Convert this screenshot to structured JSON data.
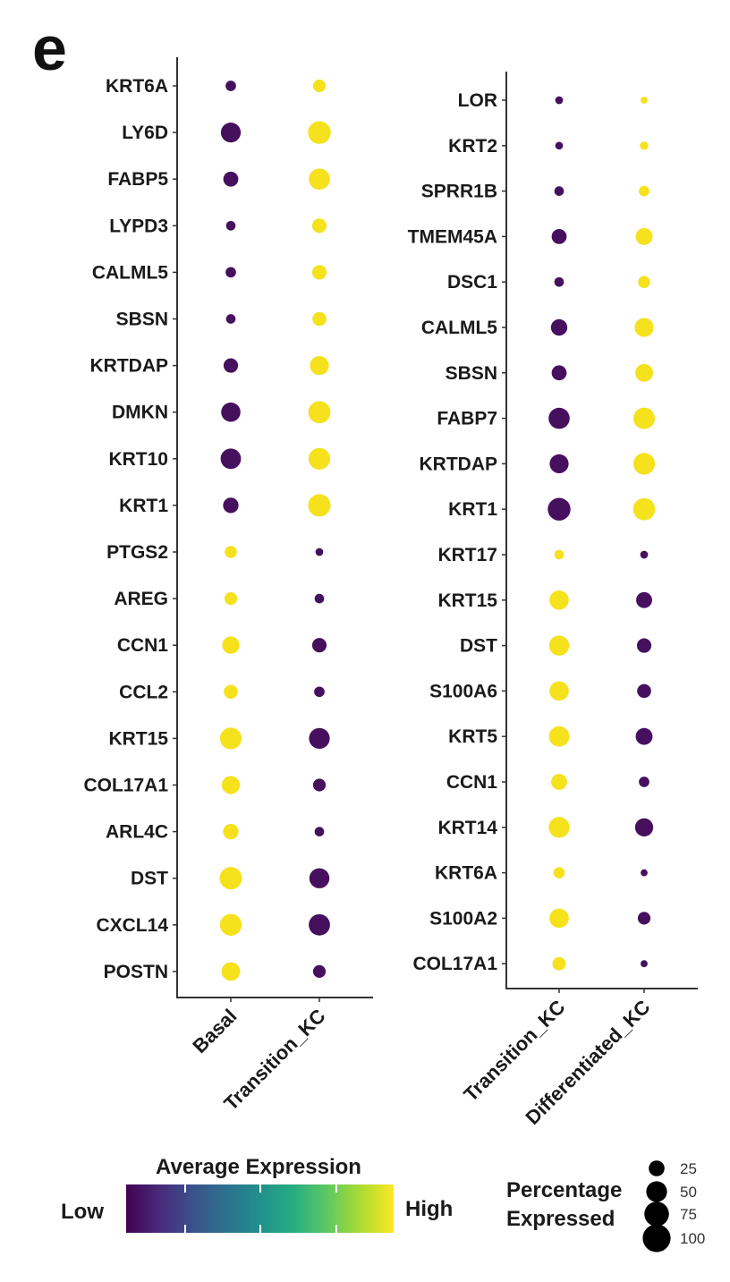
{
  "panel_letter": "e",
  "colors": {
    "low": "#46105f",
    "high": "#f5e11c",
    "gradient": [
      "#440154",
      "#472a7a",
      "#3b528b",
      "#2c718e",
      "#21908d",
      "#27ad81",
      "#5cc863",
      "#aadc32",
      "#fde725"
    ]
  },
  "chart_data": [
    {
      "type": "scatter",
      "subtype": "dotplot",
      "title": "",
      "xlabel": "",
      "ylabel": "",
      "categories": [
        "Basal",
        "Transition_KC"
      ],
      "genes": [
        "KRT6A",
        "LY6D",
        "FABP5",
        "LYPD3",
        "CALML5",
        "SBSN",
        "KRTDAP",
        "DMKN",
        "KRT10",
        "KRT1",
        "PTGS2",
        "AREG",
        "CCN1",
        "CCL2",
        "KRT15",
        "COL17A1",
        "ARL4C",
        "DST",
        "CXCL14",
        "POSTN"
      ],
      "series": [
        {
          "name": "Basal",
          "pct_expressed": [
            8,
            45,
            22,
            6,
            8,
            6,
            20,
            42,
            48,
            24,
            12,
            14,
            32,
            18,
            55,
            36,
            24,
            60,
            56,
            38
          ],
          "avg_expression": [
            "low",
            "low",
            "low",
            "low",
            "low",
            "low",
            "low",
            "low",
            "low",
            "low",
            "high",
            "high",
            "high",
            "high",
            "high",
            "high",
            "high",
            "high",
            "high",
            "high"
          ]
        },
        {
          "name": "Transition_KC",
          "pct_expressed": [
            14,
            62,
            52,
            20,
            20,
            18,
            40,
            58,
            55,
            60,
            3,
            6,
            20,
            8,
            50,
            14,
            6,
            46,
            53,
            14
          ],
          "avg_expression": [
            "high",
            "high",
            "high",
            "high",
            "high",
            "high",
            "high",
            "high",
            "high",
            "high",
            "low",
            "low",
            "low",
            "low",
            "low",
            "low",
            "low",
            "low",
            "low",
            "low"
          ]
        }
      ]
    },
    {
      "type": "scatter",
      "subtype": "dotplot",
      "title": "",
      "xlabel": "",
      "ylabel": "",
      "categories": [
        "Transition_KC",
        "Differentiated_KC"
      ],
      "genes": [
        "LOR",
        "KRT2",
        "SPRR1B",
        "TMEM45A",
        "DSC1",
        "CALML5",
        "SBSN",
        "FABP7",
        "KRTDAP",
        "KRT1",
        "KRT17",
        "KRT15",
        "DST",
        "S100A6",
        "KRT5",
        "CCN1",
        "KRT14",
        "KRT6A",
        "S100A2",
        "COL17A1"
      ],
      "series": [
        {
          "name": "Transition_KC",
          "pct_expressed": [
            3,
            3,
            6,
            22,
            6,
            28,
            22,
            52,
            40,
            62,
            6,
            42,
            46,
            42,
            48,
            26,
            50,
            10,
            42,
            16
          ],
          "avg_expression": [
            "low",
            "low",
            "low",
            "low",
            "low",
            "low",
            "low",
            "low",
            "low",
            "low",
            "high",
            "high",
            "high",
            "high",
            "high",
            "high",
            "high",
            "high",
            "high",
            "high"
          ]
        },
        {
          "name": "Differentiated_KC",
          "pct_expressed": [
            2,
            4,
            8,
            30,
            12,
            40,
            34,
            54,
            55,
            58,
            3,
            26,
            20,
            18,
            30,
            8,
            36,
            2,
            14,
            2
          ],
          "avg_expression": [
            "high",
            "high",
            "high",
            "high",
            "high",
            "high",
            "high",
            "high",
            "high",
            "high",
            "low",
            "low",
            "low",
            "low",
            "low",
            "low",
            "low",
            "low",
            "low",
            "low"
          ]
        }
      ]
    }
  ],
  "legend": {
    "color_title": "Average Expression",
    "low_label": "Low",
    "high_label": "High",
    "size_title_line1": "Percentage",
    "size_title_line2": "Expressed",
    "size_breaks": [
      {
        "label": "25",
        "value": 25
      },
      {
        "label": "50",
        "value": 50
      },
      {
        "label": "75",
        "value": 75
      },
      {
        "label": "100",
        "value": 100
      }
    ]
  }
}
